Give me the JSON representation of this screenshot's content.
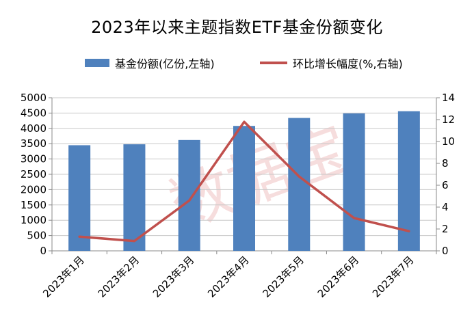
{
  "chart_data": {
    "type": "bar",
    "title": "2023年以来主题指数ETF基金份额变化",
    "categories": [
      "2023年1月",
      "2023年2月",
      "2023年3月",
      "2023年4月",
      "2023年5月",
      "2023年6月",
      "2023年7月"
    ],
    "series": [
      {
        "name": "基金份额(亿份,左轴)",
        "type": "bar",
        "axis": "left",
        "values": [
          3450,
          3480,
          3620,
          4080,
          4340,
          4490,
          4560
        ],
        "color": "#4F81BD"
      },
      {
        "name": "环比增长幅度(%,右轴)",
        "type": "line",
        "axis": "right",
        "values": [
          1.3,
          0.9,
          4.6,
          11.8,
          6.8,
          3.0,
          1.8
        ],
        "color": "#C0504D"
      }
    ],
    "ylim_left": [
      0,
      5000
    ],
    "ylim_right": [
      0,
      14
    ],
    "yticks_left": [
      "0",
      "500",
      "1000",
      "1500",
      "2000",
      "2500",
      "3000",
      "3500",
      "4000",
      "4500",
      "5000"
    ],
    "yticks_right": [
      "0",
      "2",
      "4",
      "6",
      "8",
      "10",
      "12",
      "14"
    ],
    "grid": true,
    "legend_position": "top",
    "watermark": "数据宝"
  }
}
